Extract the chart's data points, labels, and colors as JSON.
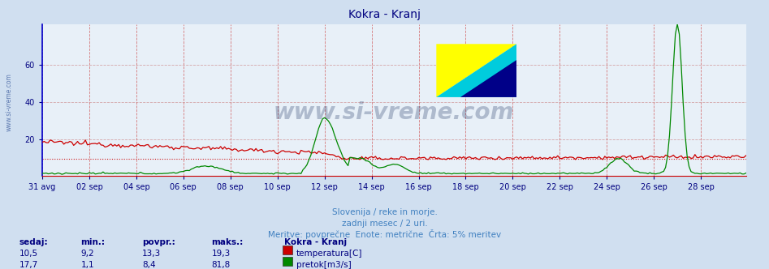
{
  "title": "Kokra - Kranj",
  "title_color": "#000080",
  "bg_color": "#d0dff0",
  "plot_bg_color": "#e8f0f8",
  "xlabel_texts": [
    "31 avg",
    "02 sep",
    "04 sep",
    "06 sep",
    "08 sep",
    "10 sep",
    "12 sep",
    "14 sep",
    "16 sep",
    "18 sep",
    "20 sep",
    "22 sep",
    "24 sep",
    "26 sep",
    "28 sep"
  ],
  "ylabel_ticks": [
    20,
    40,
    60
  ],
  "ymax": 82,
  "subtitle1": "Slovenija / reke in morje.",
  "subtitle2": "zadnji mesec / 2 uri.",
  "subtitle3": "Meritve: povprečne  Enote: metrične  Črta: 5% meritev",
  "subtitle_color": "#4080c0",
  "watermark": "www.si-vreme.com",
  "watermark_color": "#1a3060",
  "legend_title": "Kokra - Kranj",
  "legend_title_color": "#000080",
  "legend_items": [
    {
      "label": "temperatura[C]",
      "color": "#cc0000"
    },
    {
      "label": "pretok[m3/s]",
      "color": "#008800"
    }
  ],
  "stats_headers": [
    "sedaj:",
    "min.:",
    "povpr.:",
    "maks.:"
  ],
  "stats_rows": [
    {
      "sedaj": "10,5",
      "min": "9,2",
      "povpr": "13,3",
      "maks": "19,3"
    },
    {
      "sedaj": "17,7",
      "min": "1,1",
      "povpr": "8,4",
      "maks": "81,8"
    }
  ],
  "stats_color": "#000080",
  "n_points": 360,
  "hline_value": 9.5,
  "hline_color": "#cc0000",
  "vgrid_color": "#cc4444",
  "hgrid_color": "#cc8888",
  "axis_color": "#000080",
  "tick_color": "#000080",
  "left_label": "www.si-vreme.com",
  "left_label_color": "#4060a0"
}
